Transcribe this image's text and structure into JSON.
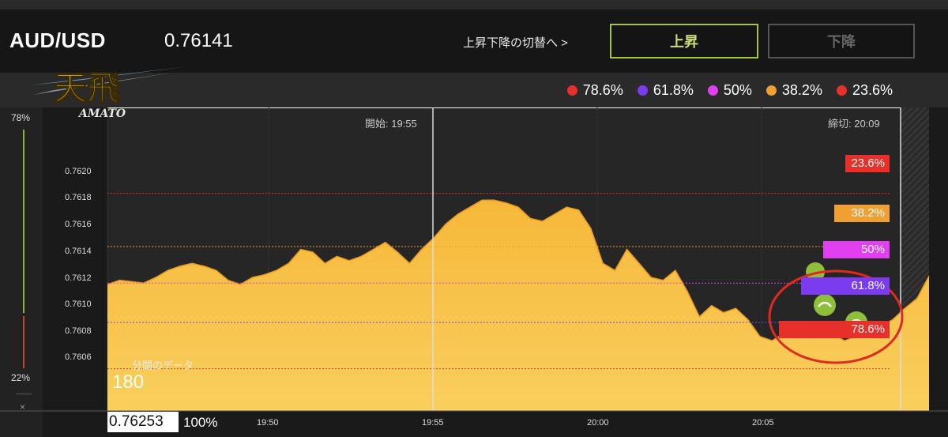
{
  "header": {
    "pair": "AUD/USD",
    "price": "0.76141",
    "switch_link": "上昇下降の切替へ >",
    "up_label": "上昇",
    "down_label": "下降"
  },
  "logo": {
    "kanji": "天飛",
    "latin": "AMATO"
  },
  "legend": [
    {
      "label": "78.6%",
      "color": "#e8302a"
    },
    {
      "label": "61.8%",
      "color": "#7b3cf0"
    },
    {
      "label": "50%",
      "color": "#e040f0"
    },
    {
      "label": "38.2%",
      "color": "#f0a030"
    },
    {
      "label": "23.6%",
      "color": "#e8302a"
    }
  ],
  "gauge": {
    "top": "78%",
    "bottom": "22%",
    "close": "×"
  },
  "chart_labels": {
    "start": "開始: 19:55",
    "end": "締切: 20:09",
    "minute_caption": "分間のデータ",
    "minute_value": "180"
  },
  "fib_tags": [
    {
      "label": "23.6%",
      "color": "#e8302a"
    },
    {
      "label": "38.2%",
      "color": "#f0a030"
    },
    {
      "label": "50%",
      "color": "#e040f0"
    },
    {
      "label": "61.8%",
      "color": "#7b3cf0"
    },
    {
      "label": "78.6%",
      "color": "#e8302a"
    }
  ],
  "bottom": {
    "price": "0.76253",
    "percent": "100%"
  },
  "chart_data": {
    "type": "area",
    "yticks": [
      "0.7620",
      "0.7618",
      "0.7616",
      "0.7614",
      "0.7612",
      "0.7610",
      "0.7608",
      "0.7606"
    ],
    "xticks": [
      "19:50",
      "19:55",
      "20:00",
      "20:05"
    ],
    "ylim": [
      0.76045,
      0.76261
    ],
    "fib_levels": [
      0.762,
      0.76162,
      0.76136,
      0.76108,
      0.76075
    ],
    "series": [
      [
        0.76135,
        0.76138,
        0.76137,
        0.76136,
        0.7614,
        0.76145,
        0.76148,
        0.7615,
        0.76148,
        0.76145,
        0.76138,
        0.76135,
        0.7614,
        0.76142,
        0.76145,
        0.7615,
        0.7616,
        0.76158,
        0.7615,
        0.76155,
        0.76152,
        0.76155,
        0.7616,
        0.76165,
        0.76158,
        0.7615,
        0.7616,
        0.76168,
        0.76178,
        0.76185,
        0.7619,
        0.76195,
        0.76195,
        0.76193,
        0.7619,
        0.76182,
        0.7618,
        0.76185,
        0.7619,
        0.76188,
        0.76175,
        0.7615,
        0.76145,
        0.7616,
        0.7615,
        0.7614,
        0.76138,
        0.76145,
        0.7613,
        0.76112,
        0.7612,
        0.76115,
        0.76118,
        0.7611,
        0.76098,
        0.76095,
        0.761,
        0.76098,
        0.761,
        0.76102,
        0.761,
        0.76095,
        0.76098,
        0.76102,
        0.76105,
        0.7611,
        0.76118,
        0.76125,
        0.76141
      ]
    ]
  }
}
